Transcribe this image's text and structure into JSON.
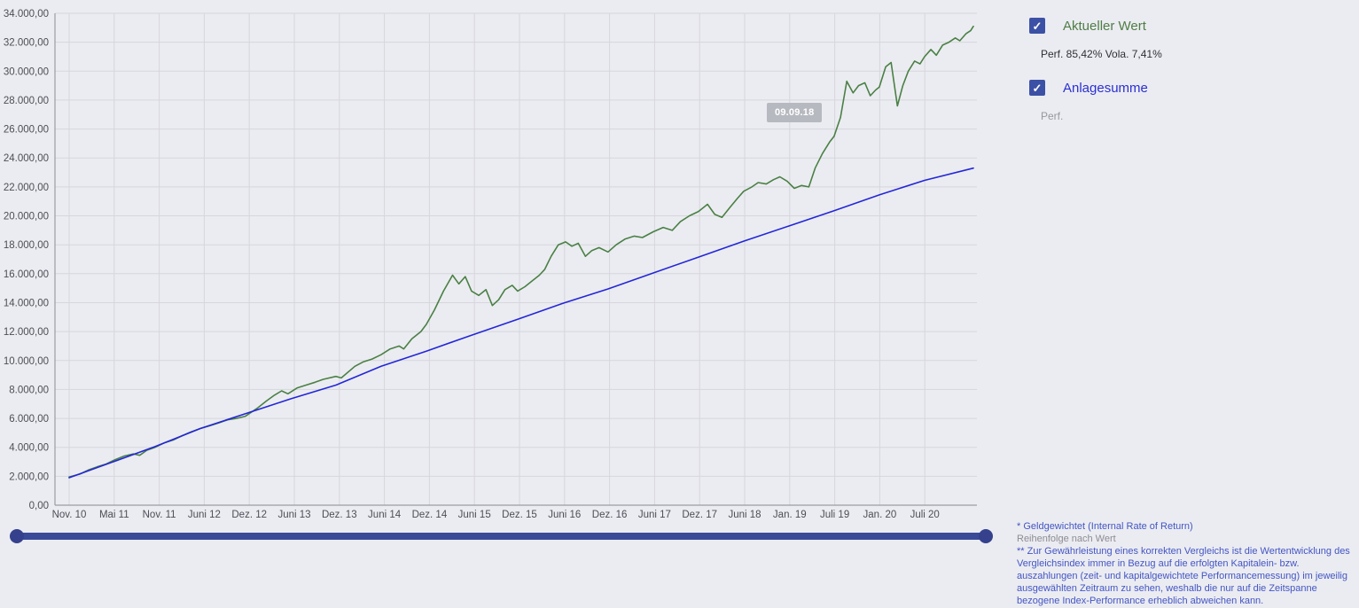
{
  "colors": {
    "background": "#ebecf1",
    "series_green": "#4a8045",
    "series_blue": "#2326d8",
    "checkbox": "#3c51a5",
    "slider": "#3a4a99",
    "grid": "#d6d6dc",
    "axis": "#9b9ca4"
  },
  "tooltip": {
    "label": "09.09.18"
  },
  "legend": {
    "series1": {
      "label": "Aktueller Wert",
      "stats": "Perf. 85,42% Vola. 7,41%",
      "checked": true,
      "color": "#4f7d46"
    },
    "series2": {
      "label": "Anlagesumme",
      "stats": "Perf.",
      "checked": true,
      "color": "#2b2fd0"
    }
  },
  "footnotes": {
    "line1": "* Geldgewichtet (Internal Rate of Return)",
    "line2": "Reihenfolge nach Wert",
    "line3": "** Zur Gewährleistung eines korrekten Vergleichs ist die Wertentwicklung des Vergleichsindex immer in Bezug auf die erfolgten Kapitalein- bzw. auszahlungen (zeit- und kapitalgewichtete Performancemessung) im jeweilig ausgewählten Zeitraum zu sehen, weshalb die nur auf die Zeitspanne bezogene Index-Performance erheblich abweichen kann."
  },
  "chart_data": {
    "type": "line",
    "title": "",
    "xlabel": "",
    "ylabel": "",
    "ylim": [
      0,
      34000
    ],
    "grid": true,
    "x_tick_labels": [
      "Nov. 10",
      "Mai 11",
      "Nov. 11",
      "Juni 12",
      "Dez. 12",
      "Juni 13",
      "Dez. 13",
      "Juni 14",
      "Dez. 14",
      "Juni 15",
      "Dez. 15",
      "Juni 16",
      "Dez. 16",
      "Juni 17",
      "Dez. 17",
      "Juni 18",
      "Jan. 19",
      "Juli 19",
      "Jan. 20",
      "Juli 20"
    ],
    "y_tick_values": [
      0,
      2000,
      4000,
      6000,
      8000,
      10000,
      12000,
      14000,
      16000,
      18000,
      20000,
      22000,
      24000,
      26000,
      28000,
      30000,
      32000,
      34000
    ],
    "y_tick_labels": [
      "0,00",
      "2.000,00",
      "4.000,00",
      "6.000,00",
      "8.000,00",
      "10.000,00",
      "12.000,00",
      "14.000,00",
      "16.000,00",
      "18.000,00",
      "20.000,00",
      "22.000,00",
      "24.000,00",
      "26.000,00",
      "28.000,00",
      "30.000,00",
      "32.000,00",
      "34.000,00"
    ],
    "series": [
      {
        "name": "Aktueller Wert",
        "color": "#4a8045",
        "points": [
          [
            0.0,
            1950
          ],
          [
            0.012,
            2150
          ],
          [
            0.022,
            2450
          ],
          [
            0.031,
            2650
          ],
          [
            0.041,
            2850
          ],
          [
            0.051,
            3150
          ],
          [
            0.061,
            3400
          ],
          [
            0.071,
            3550
          ],
          [
            0.078,
            3450
          ],
          [
            0.086,
            3800
          ],
          [
            0.095,
            4000
          ],
          [
            0.105,
            4300
          ],
          [
            0.115,
            4500
          ],
          [
            0.125,
            4800
          ],
          [
            0.134,
            5050
          ],
          [
            0.145,
            5300
          ],
          [
            0.156,
            5500
          ],
          [
            0.166,
            5700
          ],
          [
            0.175,
            5900
          ],
          [
            0.185,
            6000
          ],
          [
            0.195,
            6150
          ],
          [
            0.208,
            6700
          ],
          [
            0.218,
            7200
          ],
          [
            0.227,
            7600
          ],
          [
            0.235,
            7900
          ],
          [
            0.242,
            7700
          ],
          [
            0.252,
            8100
          ],
          [
            0.262,
            8300
          ],
          [
            0.272,
            8500
          ],
          [
            0.281,
            8700
          ],
          [
            0.295,
            8900
          ],
          [
            0.301,
            8800
          ],
          [
            0.316,
            9600
          ],
          [
            0.325,
            9900
          ],
          [
            0.335,
            10100
          ],
          [
            0.345,
            10400
          ],
          [
            0.355,
            10800
          ],
          [
            0.365,
            11000
          ],
          [
            0.37,
            10800
          ],
          [
            0.379,
            11500
          ],
          [
            0.389,
            12000
          ],
          [
            0.395,
            12500
          ],
          [
            0.404,
            13500
          ],
          [
            0.414,
            14800
          ],
          [
            0.424,
            15900
          ],
          [
            0.431,
            15300
          ],
          [
            0.438,
            15800
          ],
          [
            0.445,
            14800
          ],
          [
            0.453,
            14500
          ],
          [
            0.461,
            14900
          ],
          [
            0.468,
            13800
          ],
          [
            0.475,
            14200
          ],
          [
            0.482,
            14900
          ],
          [
            0.49,
            15200
          ],
          [
            0.496,
            14800
          ],
          [
            0.504,
            15100
          ],
          [
            0.512,
            15500
          ],
          [
            0.52,
            15900
          ],
          [
            0.526,
            16300
          ],
          [
            0.533,
            17200
          ],
          [
            0.541,
            18000
          ],
          [
            0.549,
            18200
          ],
          [
            0.556,
            17900
          ],
          [
            0.563,
            18100
          ],
          [
            0.571,
            17200
          ],
          [
            0.578,
            17600
          ],
          [
            0.586,
            17800
          ],
          [
            0.596,
            17500
          ],
          [
            0.605,
            18000
          ],
          [
            0.615,
            18400
          ],
          [
            0.625,
            18600
          ],
          [
            0.634,
            18500
          ],
          [
            0.646,
            18900
          ],
          [
            0.657,
            19200
          ],
          [
            0.667,
            19000
          ],
          [
            0.676,
            19600
          ],
          [
            0.686,
            20000
          ],
          [
            0.696,
            20300
          ],
          [
            0.706,
            20800
          ],
          [
            0.714,
            20100
          ],
          [
            0.722,
            19900
          ],
          [
            0.731,
            20600
          ],
          [
            0.739,
            21200
          ],
          [
            0.746,
            21700
          ],
          [
            0.755,
            22000
          ],
          [
            0.762,
            22300
          ],
          [
            0.771,
            22200
          ],
          [
            0.779,
            22500
          ],
          [
            0.786,
            22700
          ],
          [
            0.794,
            22400
          ],
          [
            0.802,
            21900
          ],
          [
            0.81,
            22100
          ],
          [
            0.818,
            22000
          ],
          [
            0.825,
            23300
          ],
          [
            0.833,
            24300
          ],
          [
            0.841,
            25100
          ],
          [
            0.846,
            25500
          ],
          [
            0.853,
            26800
          ],
          [
            0.86,
            29300
          ],
          [
            0.867,
            28500
          ],
          [
            0.873,
            29000
          ],
          [
            0.88,
            29200
          ],
          [
            0.886,
            28300
          ],
          [
            0.892,
            28700
          ],
          [
            0.896,
            28900
          ],
          [
            0.903,
            30300
          ],
          [
            0.909,
            30600
          ],
          [
            0.916,
            27600
          ],
          [
            0.922,
            29000
          ],
          [
            0.928,
            30000
          ],
          [
            0.935,
            30700
          ],
          [
            0.941,
            30500
          ],
          [
            0.946,
            31000
          ],
          [
            0.953,
            31500
          ],
          [
            0.959,
            31100
          ],
          [
            0.966,
            31800
          ],
          [
            0.973,
            32000
          ],
          [
            0.98,
            32300
          ],
          [
            0.985,
            32100
          ],
          [
            0.992,
            32600
          ],
          [
            0.997,
            32800
          ],
          [
            1.0,
            33100
          ]
        ]
      },
      {
        "name": "Anlagesumme",
        "color": "#2326d8",
        "points": [
          [
            0.0,
            1900
          ],
          [
            0.051,
            3050
          ],
          [
            0.095,
            4050
          ],
          [
            0.145,
            5300
          ],
          [
            0.195,
            6330
          ],
          [
            0.245,
            7350
          ],
          [
            0.295,
            8300
          ],
          [
            0.345,
            9600
          ],
          [
            0.395,
            10650
          ],
          [
            0.445,
            11750
          ],
          [
            0.496,
            12850
          ],
          [
            0.546,
            13950
          ],
          [
            0.596,
            14950
          ],
          [
            0.646,
            16050
          ],
          [
            0.696,
            17150
          ],
          [
            0.746,
            18250
          ],
          [
            0.796,
            19300
          ],
          [
            0.846,
            20350
          ],
          [
            0.896,
            21450
          ],
          [
            0.946,
            22450
          ],
          [
            1.0,
            23300
          ]
        ]
      }
    ]
  }
}
